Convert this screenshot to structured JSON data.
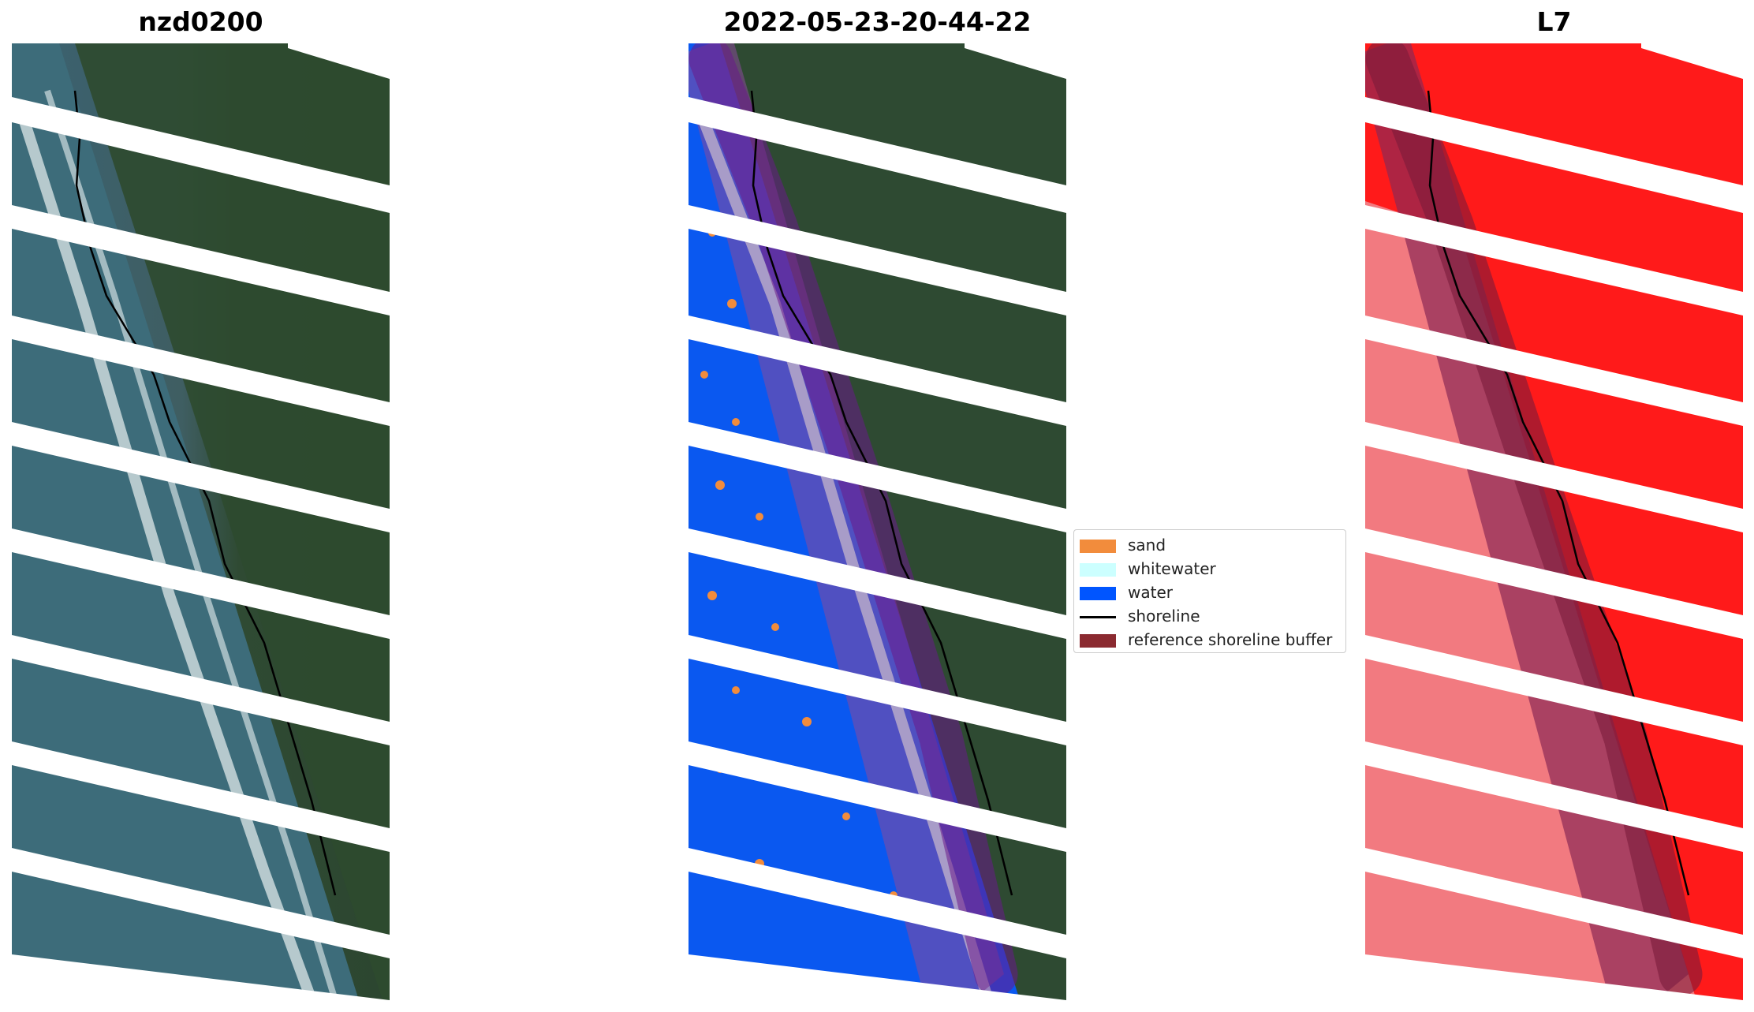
{
  "panels": [
    {
      "title": "nzd0200"
    },
    {
      "title": "2022-05-23-20-44-22"
    },
    {
      "title": "L7"
    }
  ],
  "legend": {
    "items": [
      {
        "label": "sand",
        "color": "#f28c3c",
        "kind": "patch"
      },
      {
        "label": "whitewater",
        "color": "#ccffff",
        "kind": "patch"
      },
      {
        "label": "water",
        "color": "#0055ff",
        "kind": "patch"
      },
      {
        "label": "shoreline",
        "color": "#000000",
        "kind": "line"
      },
      {
        "label": "reference shoreline buffer",
        "color": "#8b2a30",
        "kind": "patch"
      }
    ]
  },
  "colors": {
    "ocean": "#3b6a78",
    "land": "#2e4a30",
    "water_class": "#0a58f0",
    "red_class": "#ff1a1a",
    "buffer_overlay": "#6a1a8a"
  }
}
